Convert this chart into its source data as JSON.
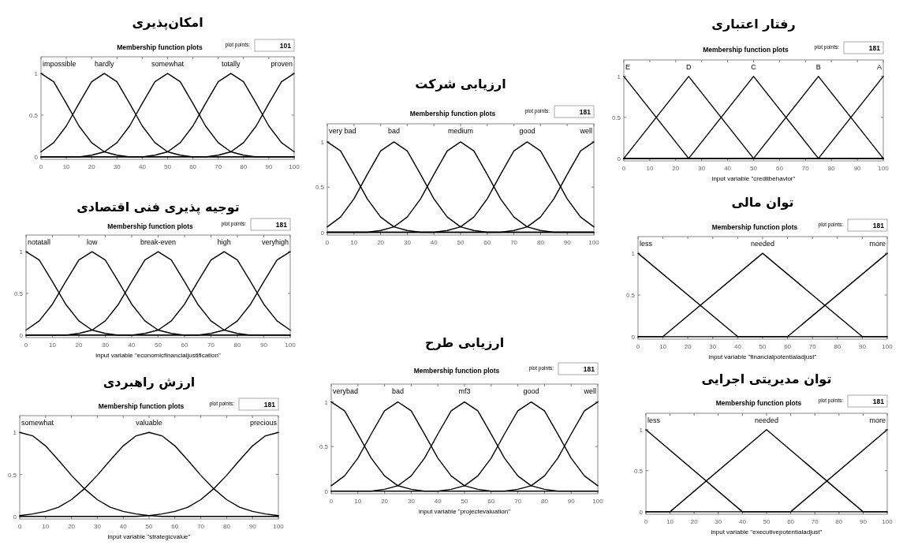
{
  "chart_data": [
    {
      "type": "line",
      "title": "امکان‌پذیری",
      "subtitle": "Membership function plots",
      "annotations": [
        "plot points:",
        "101"
      ],
      "xlim": [
        0,
        100
      ],
      "ylim": [
        -0.03,
        1.2
      ],
      "xticks": [
        0,
        10,
        20,
        30,
        40,
        50,
        60,
        70,
        80,
        90,
        100
      ],
      "yticks": [
        0,
        0.5,
        1
      ],
      "x": [
        0,
        5,
        10,
        15,
        20,
        25,
        30,
        35,
        40,
        45,
        50,
        55,
        60,
        65,
        70,
        75,
        80,
        85,
        90,
        95,
        100
      ],
      "series": [
        {
          "name": "impossible",
          "color": "#000000",
          "values": [
            1,
            0.9,
            0.64,
            0.37,
            0.17,
            0.06,
            0.02,
            0,
            0,
            0,
            0,
            0,
            0,
            0,
            0,
            0,
            0,
            0,
            0,
            0,
            0
          ]
        },
        {
          "name": "hardly",
          "color": "#000000",
          "values": [
            0.06,
            0.17,
            0.37,
            0.64,
            0.9,
            1,
            0.9,
            0.64,
            0.37,
            0.17,
            0.06,
            0.02,
            0,
            0,
            0,
            0,
            0,
            0,
            0,
            0,
            0
          ]
        },
        {
          "name": "somewhat",
          "color": "#000000",
          "values": [
            0,
            0,
            0,
            0,
            0.02,
            0.06,
            0.17,
            0.37,
            0.64,
            0.9,
            1,
            0.9,
            0.64,
            0.37,
            0.17,
            0.06,
            0.02,
            0,
            0,
            0,
            0
          ]
        },
        {
          "name": "totally",
          "color": "#000000",
          "values": [
            0,
            0,
            0,
            0,
            0,
            0,
            0,
            0,
            0,
            0.02,
            0.06,
            0.17,
            0.37,
            0.64,
            0.9,
            1,
            0.9,
            0.64,
            0.37,
            0.17,
            0.06
          ]
        },
        {
          "name": "proven",
          "color": "#000000",
          "values": [
            0,
            0,
            0,
            0,
            0,
            0,
            0,
            0,
            0,
            0,
            0,
            0,
            0,
            0,
            0.02,
            0.06,
            0.17,
            0.37,
            0.64,
            0.9,
            1
          ]
        }
      ]
    },
    {
      "type": "line",
      "title": "توجیه پذیری فنی اقتصادی",
      "subtitle": "Membership function plots",
      "xlabel": "input variable \"economicfinancialjustification\"",
      "annotations": [
        "plot points:",
        "181"
      ],
      "xlim": [
        0,
        100
      ],
      "ylim": [
        -0.03,
        1.2
      ],
      "xticks": [
        0,
        10,
        20,
        30,
        40,
        50,
        60,
        70,
        80,
        90,
        100
      ],
      "yticks": [
        0,
        0.5,
        1
      ],
      "x": [
        0,
        5,
        10,
        15,
        20,
        25,
        30,
        35,
        40,
        45,
        50,
        55,
        60,
        65,
        70,
        75,
        80,
        85,
        90,
        95,
        100
      ],
      "series": [
        {
          "name": "notatall",
          "color": "#000000",
          "values": [
            1,
            0.9,
            0.64,
            0.37,
            0.17,
            0.06,
            0.02,
            0,
            0,
            0,
            0,
            0,
            0,
            0,
            0,
            0,
            0,
            0,
            0,
            0,
            0
          ]
        },
        {
          "name": "low",
          "color": "#000000",
          "values": [
            0.06,
            0.17,
            0.37,
            0.64,
            0.9,
            1,
            0.9,
            0.64,
            0.37,
            0.17,
            0.06,
            0.02,
            0,
            0,
            0,
            0,
            0,
            0,
            0,
            0,
            0
          ]
        },
        {
          "name": "break-even",
          "color": "#000000",
          "values": [
            0,
            0,
            0,
            0,
            0.02,
            0.06,
            0.17,
            0.37,
            0.64,
            0.9,
            1,
            0.9,
            0.64,
            0.37,
            0.17,
            0.06,
            0.02,
            0,
            0,
            0,
            0
          ]
        },
        {
          "name": "high",
          "color": "#000000",
          "values": [
            0,
            0,
            0,
            0,
            0,
            0,
            0,
            0,
            0,
            0.02,
            0.06,
            0.17,
            0.37,
            0.64,
            0.9,
            1,
            0.9,
            0.64,
            0.37,
            0.17,
            0.06
          ]
        },
        {
          "name": "veryhigh",
          "color": "#000000",
          "values": [
            0,
            0,
            0,
            0,
            0,
            0,
            0,
            0,
            0,
            0,
            0,
            0,
            0,
            0,
            0.02,
            0.06,
            0.17,
            0.37,
            0.64,
            0.9,
            1
          ]
        }
      ]
    },
    {
      "type": "line",
      "title": "ارزش راهبردی",
      "subtitle": "Membership function plots",
      "xlabel": "input variable \"strategicvalue\"",
      "annotations": [
        "plot points:",
        "181"
      ],
      "xlim": [
        0,
        100
      ],
      "ylim": [
        -0.03,
        1.2
      ],
      "xticks": [
        0,
        10,
        20,
        30,
        40,
        50,
        60,
        70,
        80,
        90,
        100
      ],
      "yticks": [
        0,
        0.5,
        1
      ],
      "x": [
        0,
        5,
        10,
        15,
        20,
        25,
        30,
        35,
        40,
        45,
        50,
        55,
        60,
        65,
        70,
        75,
        80,
        85,
        90,
        95,
        100
      ],
      "series": [
        {
          "name": "somewhat",
          "color": "#000000",
          "values": [
            1,
            0.96,
            0.84,
            0.67,
            0.49,
            0.33,
            0.2,
            0.11,
            0.06,
            0.03,
            0.01,
            0,
            0,
            0,
            0,
            0,
            0,
            0,
            0,
            0,
            0
          ]
        },
        {
          "name": "valuable",
          "color": "#000000",
          "values": [
            0.01,
            0.03,
            0.06,
            0.11,
            0.2,
            0.33,
            0.49,
            0.67,
            0.84,
            0.96,
            1,
            0.96,
            0.84,
            0.67,
            0.49,
            0.33,
            0.2,
            0.11,
            0.06,
            0.03,
            0.01
          ]
        },
        {
          "name": "precious",
          "color": "#000000",
          "values": [
            0,
            0,
            0,
            0,
            0,
            0,
            0,
            0,
            0,
            0,
            0.01,
            0.03,
            0.06,
            0.11,
            0.2,
            0.33,
            0.49,
            0.67,
            0.84,
            0.96,
            1
          ]
        }
      ]
    },
    {
      "type": "line",
      "title": "ارزیابی شرکت",
      "subtitle": "Membership function plots",
      "annotations": [
        "plot points:",
        "181"
      ],
      "xlim": [
        0,
        100
      ],
      "ylim": [
        -0.03,
        1.2
      ],
      "xticks": [
        0,
        10,
        20,
        30,
        40,
        50,
        60,
        70,
        80,
        90,
        100
      ],
      "yticks": [
        0,
        0.5,
        1
      ],
      "x": [
        0,
        5,
        10,
        15,
        20,
        25,
        30,
        35,
        40,
        45,
        50,
        55,
        60,
        65,
        70,
        75,
        80,
        85,
        90,
        95,
        100
      ],
      "series": [
        {
          "name": "very bad",
          "color": "#000000",
          "values": [
            1,
            0.9,
            0.64,
            0.37,
            0.17,
            0.06,
            0.02,
            0,
            0,
            0,
            0,
            0,
            0,
            0,
            0,
            0,
            0,
            0,
            0,
            0,
            0
          ]
        },
        {
          "name": "bad",
          "color": "#000000",
          "values": [
            0.06,
            0.17,
            0.37,
            0.64,
            0.9,
            1,
            0.9,
            0.64,
            0.37,
            0.17,
            0.06,
            0.02,
            0,
            0,
            0,
            0,
            0,
            0,
            0,
            0,
            0
          ]
        },
        {
          "name": "medium",
          "color": "#000000",
          "values": [
            0,
            0,
            0,
            0,
            0.02,
            0.06,
            0.17,
            0.37,
            0.64,
            0.9,
            1,
            0.9,
            0.64,
            0.37,
            0.17,
            0.06,
            0.02,
            0,
            0,
            0,
            0
          ]
        },
        {
          "name": "good",
          "color": "#000000",
          "values": [
            0,
            0,
            0,
            0,
            0,
            0,
            0,
            0,
            0,
            0.02,
            0.06,
            0.17,
            0.37,
            0.64,
            0.9,
            1,
            0.9,
            0.64,
            0.37,
            0.17,
            0.06
          ]
        },
        {
          "name": "well",
          "color": "#000000",
          "values": [
            0,
            0,
            0,
            0,
            0,
            0,
            0,
            0,
            0,
            0,
            0,
            0,
            0,
            0,
            0.02,
            0.06,
            0.17,
            0.37,
            0.64,
            0.9,
            1
          ]
        }
      ]
    },
    {
      "type": "line",
      "title": "ارزیابی طرح",
      "subtitle": "Membership function plots",
      "xlabel": "input variable \"projectevaluation\"",
      "annotations": [
        "plot points:",
        "181"
      ],
      "xlim": [
        0,
        100
      ],
      "ylim": [
        -0.03,
        1.2
      ],
      "xticks": [
        0,
        10,
        20,
        30,
        40,
        50,
        60,
        70,
        80,
        90,
        100
      ],
      "yticks": [
        0,
        0.5,
        1
      ],
      "x": [
        0,
        5,
        10,
        15,
        20,
        25,
        30,
        35,
        40,
        45,
        50,
        55,
        60,
        65,
        70,
        75,
        80,
        85,
        90,
        95,
        100
      ],
      "series": [
        {
          "name": "verybad",
          "color": "#000000",
          "values": [
            1,
            0.9,
            0.64,
            0.37,
            0.17,
            0.06,
            0.02,
            0,
            0,
            0,
            0,
            0,
            0,
            0,
            0,
            0,
            0,
            0,
            0,
            0,
            0
          ]
        },
        {
          "name": "bad",
          "color": "#000000",
          "values": [
            0.06,
            0.17,
            0.37,
            0.64,
            0.9,
            1,
            0.9,
            0.64,
            0.37,
            0.17,
            0.06,
            0.02,
            0,
            0,
            0,
            0,
            0,
            0,
            0,
            0,
            0
          ]
        },
        {
          "name": "mf3",
          "color": "#000000",
          "values": [
            0,
            0,
            0,
            0,
            0.02,
            0.06,
            0.17,
            0.37,
            0.64,
            0.9,
            1,
            0.9,
            0.64,
            0.37,
            0.17,
            0.06,
            0.02,
            0,
            0,
            0,
            0
          ]
        },
        {
          "name": "good",
          "color": "#000000",
          "values": [
            0,
            0,
            0,
            0,
            0,
            0,
            0,
            0,
            0,
            0.02,
            0.06,
            0.17,
            0.37,
            0.64,
            0.9,
            1,
            0.9,
            0.64,
            0.37,
            0.17,
            0.06
          ]
        },
        {
          "name": "well",
          "color": "#000000",
          "values": [
            0,
            0,
            0,
            0,
            0,
            0,
            0,
            0,
            0,
            0,
            0,
            0,
            0,
            0,
            0.02,
            0.06,
            0.17,
            0.37,
            0.64,
            0.9,
            1
          ]
        }
      ]
    },
    {
      "type": "line",
      "title": "رفتار اعتباری",
      "subtitle": "Membership function plots",
      "xlabel": "input variable \"creditbehavior\"",
      "annotations": [
        "plot points:",
        "181"
      ],
      "xlim": [
        0,
        100
      ],
      "ylim": [
        -0.03,
        1.2
      ],
      "xticks": [
        0,
        10,
        20,
        30,
        40,
        50,
        60,
        70,
        80,
        90,
        100
      ],
      "yticks": [
        0,
        0.5,
        1
      ],
      "series": [
        {
          "name": "E",
          "color": "#000000",
          "x": [
            0,
            25,
            100
          ],
          "values": [
            1,
            0,
            0
          ]
        },
        {
          "name": "D",
          "color": "#000000",
          "x": [
            0,
            25,
            50,
            100
          ],
          "values": [
            0,
            1,
            0,
            0
          ]
        },
        {
          "name": "C",
          "color": "#000000",
          "x": [
            0,
            25,
            50,
            75,
            100
          ],
          "values": [
            0,
            0,
            1,
            0,
            0
          ]
        },
        {
          "name": "B",
          "color": "#000000",
          "x": [
            0,
            50,
            75,
            100
          ],
          "values": [
            0,
            0,
            1,
            0
          ]
        },
        {
          "name": "A",
          "color": "#000000",
          "x": [
            0,
            75,
            100
          ],
          "values": [
            0,
            0,
            1
          ]
        }
      ]
    },
    {
      "type": "line",
      "title": "توان مالی",
      "subtitle": "Membership function plots",
      "xlabel": "input variable \"financialpotentialadjust\"",
      "annotations": [
        "plot points:",
        "181"
      ],
      "xlim": [
        0,
        100
      ],
      "ylim": [
        -0.03,
        1.2
      ],
      "xticks": [
        0,
        10,
        20,
        30,
        40,
        50,
        60,
        70,
        80,
        90,
        100
      ],
      "yticks": [
        0,
        0.5,
        1
      ],
      "series": [
        {
          "name": "less",
          "color": "#000000",
          "x": [
            0,
            40,
            100
          ],
          "values": [
            1,
            0,
            0
          ]
        },
        {
          "name": "needed",
          "color": "#000000",
          "x": [
            0,
            10,
            50,
            90,
            100
          ],
          "values": [
            0,
            0,
            1,
            0,
            0
          ]
        },
        {
          "name": "more",
          "color": "#000000",
          "x": [
            0,
            60,
            100
          ],
          "values": [
            0,
            0,
            1
          ]
        }
      ]
    },
    {
      "type": "line",
      "title": "توان مدیریتی اجرایی",
      "subtitle": "Membership function plots",
      "xlabel": "input variable \"executivepotentialadjust\"",
      "annotations": [
        "plot points:",
        "181"
      ],
      "xlim": [
        0,
        100
      ],
      "ylim": [
        -0.03,
        1.2
      ],
      "xticks": [
        0,
        10,
        20,
        30,
        40,
        50,
        60,
        70,
        80,
        90,
        100
      ],
      "yticks": [
        0,
        0.5,
        1
      ],
      "series": [
        {
          "name": "less",
          "color": "#000000",
          "x": [
            0,
            40,
            100
          ],
          "values": [
            1,
            0,
            0
          ]
        },
        {
          "name": "needed",
          "color": "#000000",
          "x": [
            0,
            10,
            50,
            90,
            100
          ],
          "values": [
            0,
            0,
            1,
            0,
            0
          ]
        },
        {
          "name": "more",
          "color": "#000000",
          "x": [
            0,
            60,
            100
          ],
          "values": [
            0,
            0,
            1
          ]
        }
      ]
    }
  ]
}
